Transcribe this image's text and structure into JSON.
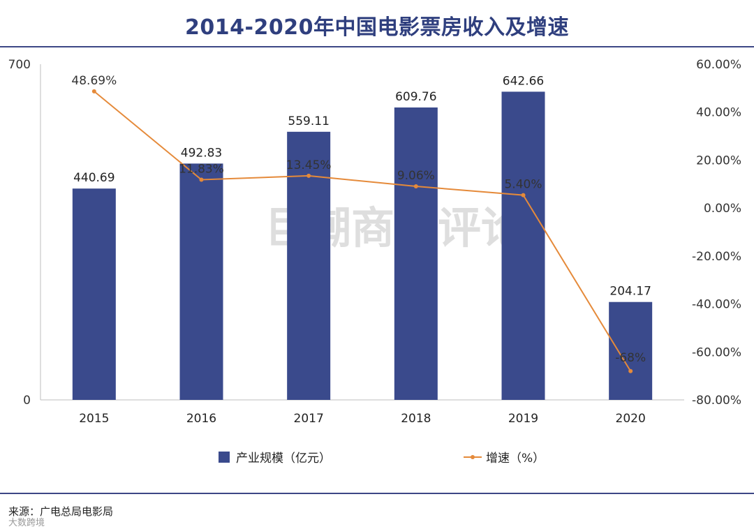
{
  "title": "2014-2020年中国电影票房收入及增速",
  "watermark": "巨潮商业评论",
  "source": "来源：广电总局电影局",
  "brand": "大数跨境",
  "chart_data": {
    "type": "bar",
    "title": "2014-2020年中国电影票房收入及增速",
    "categories": [
      "2015",
      "2016",
      "2017",
      "2018",
      "2019",
      "2020"
    ],
    "series": [
      {
        "name": "产业规模（亿元）",
        "type": "bar",
        "axis": "left",
        "values": [
          440.69,
          492.83,
          559.11,
          609.76,
          642.66,
          204.17
        ],
        "labels": [
          "440.69",
          "492.83",
          "559.11",
          "609.76",
          "642.66",
          "204.17"
        ],
        "color": "#3a4a8c"
      },
      {
        "name": "增速（%）",
        "type": "line",
        "axis": "right",
        "values": [
          48.69,
          11.83,
          13.45,
          9.06,
          5.4,
          -68
        ],
        "labels": [
          "48.69%",
          "11.83%",
          "13.45%",
          "9.06%",
          "5.40%",
          "-68%"
        ],
        "color": "#e58a3a"
      }
    ],
    "y_left": {
      "ylim": [
        0,
        700
      ],
      "ticks": [
        0,
        700
      ],
      "tick_labels": [
        "0",
        "700"
      ]
    },
    "y_right": {
      "ylim": [
        -80,
        60
      ],
      "ticks": [
        60,
        40,
        20,
        0,
        -20,
        -40,
        -60,
        -80
      ],
      "tick_labels": [
        "60.00%",
        "40.00%",
        "20.00%",
        "0.00%",
        "-20.00%",
        "-40.00%",
        "-60.00%",
        "-80.00%"
      ]
    },
    "legend_position": "bottom",
    "grid": false
  }
}
